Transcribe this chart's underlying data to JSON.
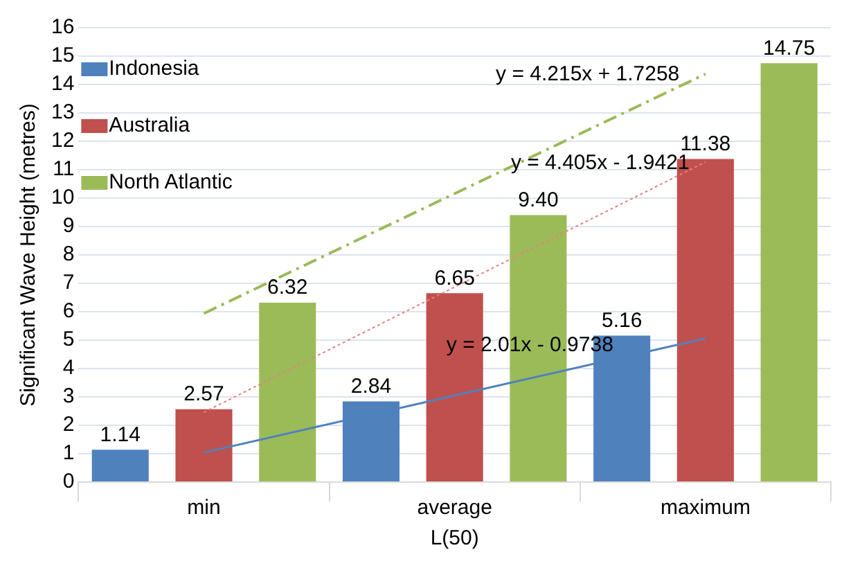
{
  "chart_data": {
    "type": "bar",
    "xlabel": "L(50)",
    "ylabel": "Significant Wave Height (metres)",
    "categories": [
      "min",
      "average",
      "maximum"
    ],
    "series": [
      {
        "name": "Indonesia",
        "color": "#4f81bd",
        "values": [
          1.14,
          2.84,
          5.16
        ],
        "value_labels": [
          "1.14",
          "2.84",
          "5.16"
        ]
      },
      {
        "name": "Australia",
        "color": "#c0504d",
        "values": [
          2.57,
          6.65,
          11.38
        ],
        "value_labels": [
          "2.57",
          "6.65",
          "11.38"
        ]
      },
      {
        "name": "North Atlantic",
        "color": "#9bbb59",
        "values": [
          6.32,
          9.4,
          14.75
        ],
        "value_labels": [
          "6.32",
          "9.40",
          "14.75"
        ]
      },
      {
        "type": "line",
        "color": "#4f81bd",
        "x": [
          "min",
          "average",
          "maximum"
        ],
        "values": [
          1.04,
          3.05,
          5.06
        ],
        "line_style": "solid"
      },
      {
        "type": "line",
        "color": "#e8807c",
        "x": [
          "min",
          "average",
          "maximum"
        ],
        "values": [
          2.46,
          6.87,
          11.27
        ],
        "line_style": "dotted"
      },
      {
        "type": "line",
        "color": "#9bbb59",
        "x": [
          "min",
          "average",
          "maximum"
        ],
        "values": [
          5.94,
          10.16,
          14.37
        ],
        "line_style": "dashed"
      }
    ],
    "annotations": [
      "y = 2.01x - 0.9738",
      "y = 4.405x - 1.9421",
      "y = 4.215x + 1.7258"
    ],
    "ylim": [
      0,
      16
    ],
    "yticks": [
      0,
      1,
      2,
      3,
      4,
      5,
      6,
      7,
      8,
      9,
      10,
      11,
      12,
      13,
      14,
      15,
      16
    ],
    "grid": "y",
    "legend": "top left",
    "marker": "none"
  }
}
